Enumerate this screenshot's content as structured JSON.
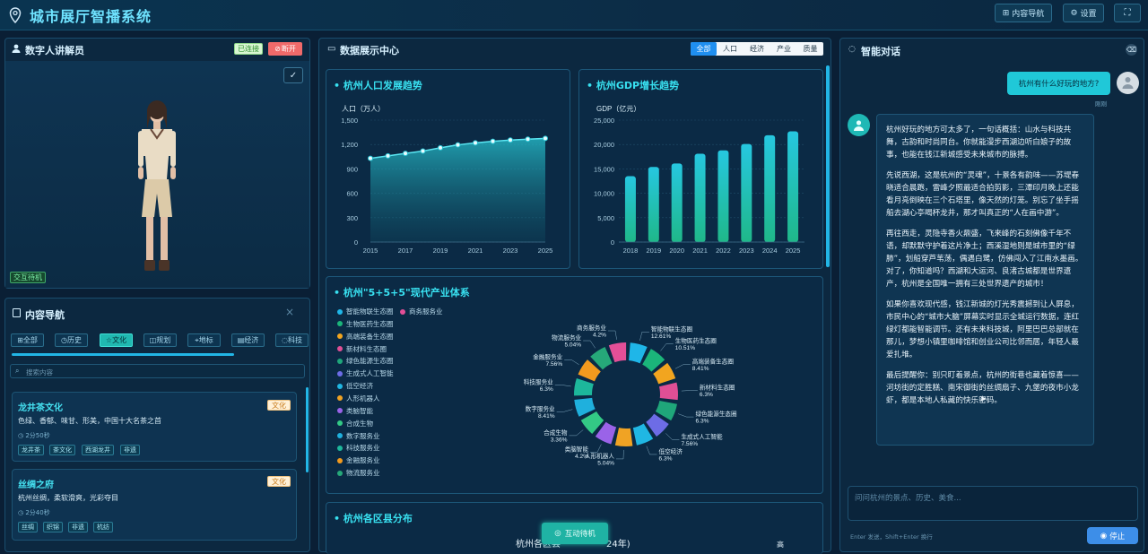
{
  "app": {
    "title": "城市展厅智播系统",
    "nav_button": "内容导航",
    "settings_button": "设置"
  },
  "presenter": {
    "title": "数字人讲解员",
    "status_connected": "已连接",
    "disconnect": "断开",
    "idle_label": "交互待机"
  },
  "content_nav": {
    "title": "内容导航",
    "filters": [
      "全部",
      "历史",
      "文化",
      "规划",
      "地标",
      "经济",
      "科技"
    ],
    "active_filter": "文化",
    "search_placeholder": "搜索内容",
    "items": [
      {
        "title": "龙井茶文化",
        "badge": "文化",
        "desc": "色绿、香郁、味甘、形美，中国十大名茶之首",
        "duration": "2分50秒",
        "tags": [
          "龙井茶",
          "茶文化",
          "西湖龙井",
          "非遗"
        ]
      },
      {
        "title": "丝绸之府",
        "badge": "文化",
        "desc": "杭州丝绸，柔软滑爽，光彩夺目",
        "duration": "2分40秒",
        "tags": [
          "丝绸",
          "织锦",
          "非遗",
          "杭纺"
        ]
      }
    ]
  },
  "dashboard": {
    "title": "数据展示中心",
    "tabs": [
      "全部",
      "人口",
      "经济",
      "产业",
      "质量"
    ],
    "active_tab": "全部",
    "interact_button": "互动待机",
    "district_title": "杭州各区县分布",
    "district_chart_title": "杭州各区县",
    "district_chart_title_tail": "24年)",
    "district_corner": "高"
  },
  "chart_data": [
    {
      "type": "area",
      "title": "杭州人口发展趋势",
      "ylabel": "人口（万人）",
      "x": [
        2015,
        2016,
        2017,
        2018,
        2019,
        2020,
        2021,
        2022,
        2023,
        2024,
        2025
      ],
      "y": [
        1030,
        1060,
        1090,
        1120,
        1160,
        1196,
        1220,
        1240,
        1255,
        1265,
        1275
      ],
      "ylim": [
        0,
        1500
      ],
      "yticks": [
        0,
        300,
        600,
        900,
        1200,
        "1,500"
      ],
      "xticks": [
        2015,
        2017,
        2019,
        2021,
        2023,
        2025
      ]
    },
    {
      "type": "bar",
      "title": "杭州GDP增长趋势",
      "ylabel": "GDP（亿元）",
      "categories": [
        "2018",
        "2019",
        "2020",
        "2021",
        "2022",
        "2023",
        "2024",
        "2025"
      ],
      "values": [
        13500,
        15400,
        16100,
        18100,
        18800,
        20100,
        21900,
        22700
      ],
      "ylim": [
        0,
        25000
      ],
      "yticks": [
        "0",
        "5,000",
        "10,000",
        "15,000",
        "20,000",
        "25,000"
      ]
    },
    {
      "type": "pie",
      "title": "杭州\"5+5+5\"现代产业体系",
      "legend": [
        "智能物联生态圈",
        "商务服务业",
        "生物医药生态圈",
        "高端装备生态圈",
        "新材料生态圈",
        "绿色能源生态圈",
        "生成式人工智能",
        "低空经济",
        "人形机器人",
        "类脑智能",
        "合成生物",
        "数字服务业",
        "科技服务业",
        "金融服务业",
        "物流服务业"
      ],
      "slices": [
        {
          "name": "智能物联生态圈",
          "pct": "12.61%",
          "color": "#1fb6e8"
        },
        {
          "name": "生物医药生态圈",
          "pct": "10.51%",
          "color": "#1bb57a"
        },
        {
          "name": "高端装备生态圈",
          "pct": "8.41%",
          "color": "#f2a51f"
        },
        {
          "name": "新材料生态圈",
          "pct": "6.3%",
          "color": "#e04f95"
        },
        {
          "name": "绿色能源生态圈",
          "pct": "6.3%",
          "color": "#1fa67a"
        },
        {
          "name": "生成式人工智能",
          "pct": "7.56%",
          "color": "#6d6ce6"
        },
        {
          "name": "低空经济",
          "pct": "6.3%",
          "color": "#20b7e3"
        },
        {
          "name": "人形机器人",
          "pct": "5.04%",
          "color": "#f0a324"
        },
        {
          "name": "类脑智能",
          "pct": "4.2%",
          "color": "#9a63e8"
        },
        {
          "name": "合成生物",
          "pct": "3.36%",
          "color": "#33c985"
        },
        {
          "name": "数字服务业",
          "pct": "8.41%",
          "color": "#1fb0dd"
        },
        {
          "name": "科技服务业",
          "pct": "6.3%",
          "color": "#1db79b"
        },
        {
          "name": "金融服务业",
          "pct": "7.56%",
          "color": "#f29a1e"
        },
        {
          "name": "物流服务业",
          "pct": "5.04%",
          "color": "#26a879"
        },
        {
          "name": "商务服务业",
          "pct": "4.2%",
          "color": "#e34f97"
        }
      ]
    }
  ],
  "chat": {
    "title": "智能对话",
    "user_msg": "杭州有什么好玩的地方?",
    "user_time": "刚刚",
    "reply": [
      "杭州好玩的地方可太多了，一句话概括：山水与科技共舞，古韵和时尚同台。你就能漫步西湖边听白娘子的故事，也能在钱江新城感受未来城市的脉搏。",
      "先说西湖，这是杭州的“灵魂”，十景各有韵味——苏堤春晓适合晨跑，雷峰夕照最适合拍剪影，三潭印月晚上还能看月亮倒映在三个石塔里，像天然的灯笼。别忘了坐手摇船去湖心亭喝杯龙井，那才叫真正的“人在画中游”。",
      "再往西走，灵隐寺香火鼎盛，飞来峰的石刻佛像千年不语，却默默守护着这片净土；西溪湿地则是城市里的“绿肺”，划船穿芦苇荡，偶遇白鹭，仿佛闯入了江南水墨画。对了，你知道吗？西湖和大运河、良渚古城都是世界遗产，杭州是全国唯一拥有三处世界遗产的城市！",
      "如果你喜欢现代感，钱江新城的灯光秀震撼到让人屏息，市民中心的“城市大脑”屏幕实时显示全城运行数据，连红绿灯都能智能调节。还有未来科技城，阿里巴巴总部就在那儿，梦想小镇里咖啡馆和创业公司比邻而居，年轻人最爱扎堆。",
      "最后提醒你：别只盯着景点，杭州的街巷也藏着惊喜——河坊街的定胜糕、南宋御街的丝绸扇子、九堡的夜市小龙虾，都是本地人私藏的快乐密码。"
    ],
    "input_placeholder": "问问杭州的景点、历史、美食...",
    "hint": "Enter 发送，Shift+Enter 换行",
    "stop_button": "停止"
  }
}
